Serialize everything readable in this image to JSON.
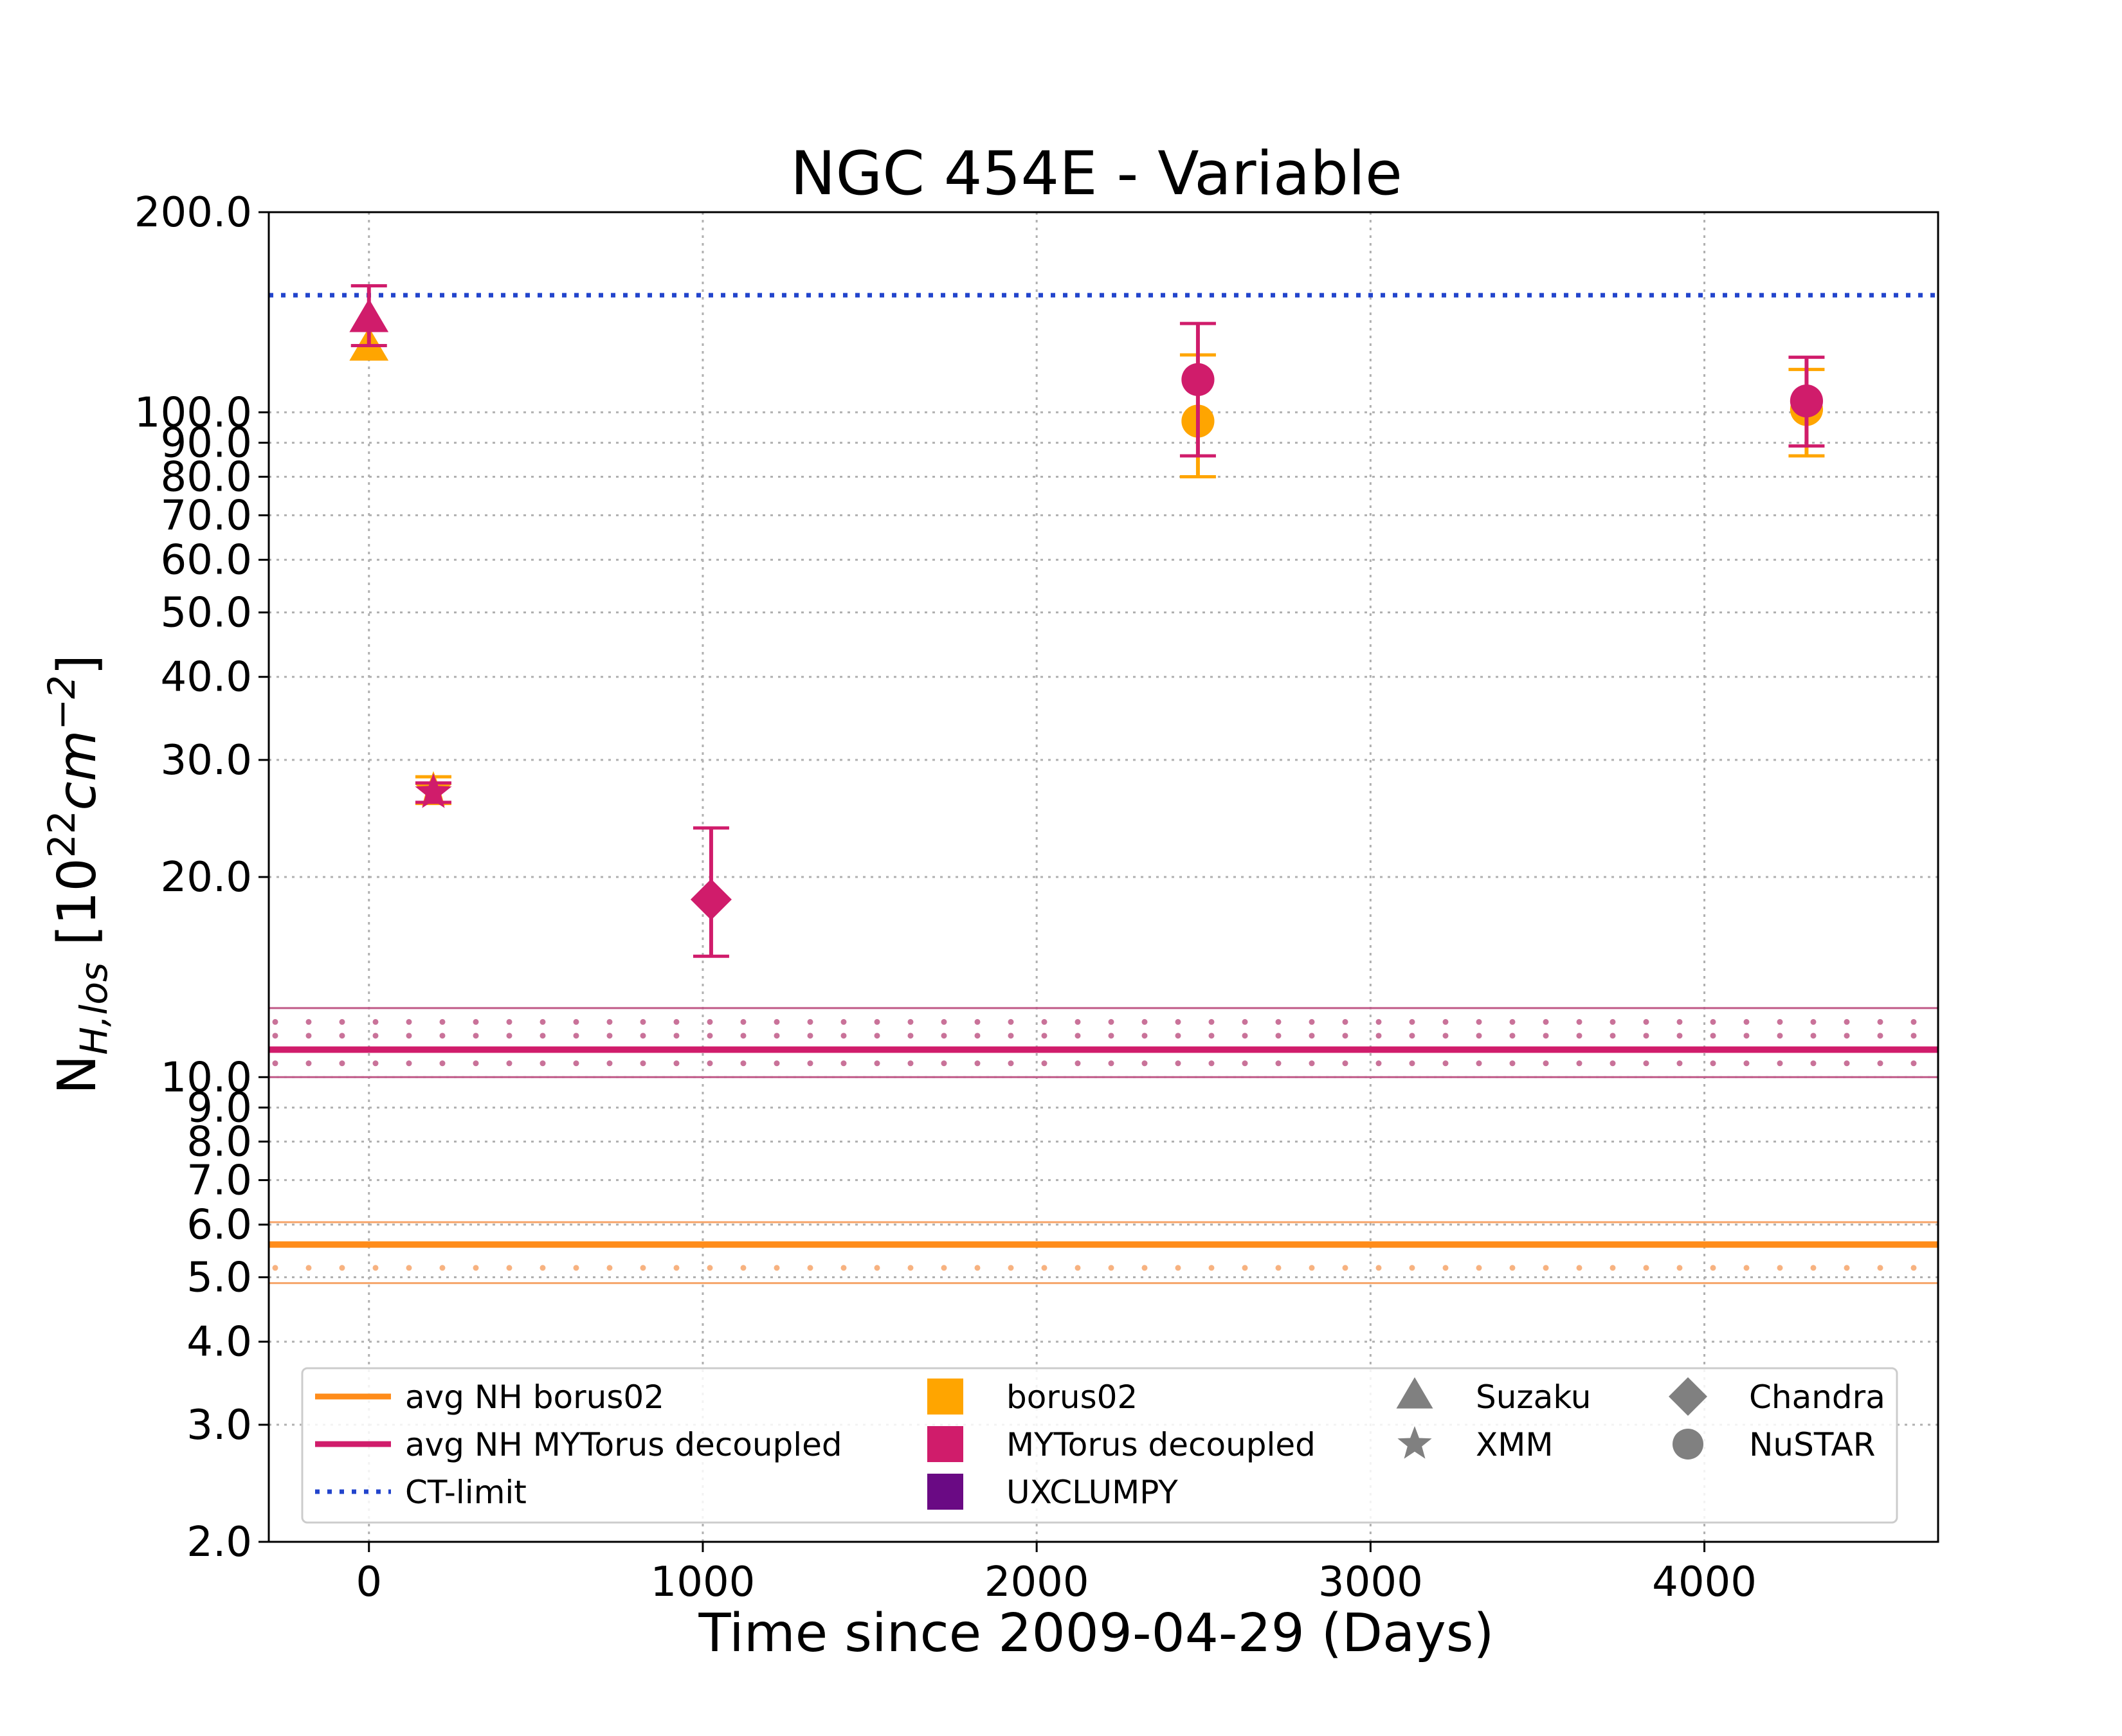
{
  "chart_data": {
    "type": "scatter",
    "title": "NGC 454E - Variable",
    "xlabel": "Time since 2009-04-29 (Days)",
    "ylabel": {
      "main": "N",
      "sub": "H,los",
      "unit_open": " [10",
      "unit_sup1": "22",
      "unit_mid": "cm",
      "unit_sup2": "−2",
      "unit_close": "]"
    },
    "x_axis": {
      "range": [
        -300,
        4700
      ],
      "ticks": [
        0,
        1000,
        2000,
        3000,
        4000
      ],
      "tick_labels": [
        "0",
        "1000",
        "2000",
        "3000",
        "4000"
      ]
    },
    "y_axis": {
      "scale": "log",
      "range": [
        2,
        200
      ],
      "ticks": [
        2,
        3,
        4,
        5,
        6,
        7,
        8,
        9,
        10,
        20,
        30,
        40,
        50,
        60,
        70,
        80,
        90,
        100,
        200
      ],
      "tick_labels": [
        "2.0",
        "3.0",
        "4.0",
        "5.0",
        "6.0",
        "7.0",
        "8.0",
        "9.0",
        "10.0",
        "20.0",
        "30.0",
        "40.0",
        "50.0",
        "60.0",
        "70.0",
        "80.0",
        "90.0",
        "100.0",
        "200.0"
      ]
    },
    "grid": true,
    "colors": {
      "borus02": "#FFA500",
      "mytorus": "#D01C6B",
      "uxclumpy": "#6A0A84",
      "avg_borus_line": "#FF8C1A",
      "avg_borus_band": "#F6A56A",
      "avg_mytorus_line": "#D01C6B",
      "avg_mytorus_band": "#C05A88",
      "ct_limit": "#2244CC",
      "marker_legend": "#808080"
    },
    "reference_lines": [
      {
        "name": "CT-limit",
        "y": 150,
        "style": "dotted"
      },
      {
        "name": "avg NH borus02",
        "y": 5.6,
        "band": [
          4.9,
          6.05
        ]
      },
      {
        "name": "avg NH MYTorus decoupled",
        "y": 11.0,
        "band": [
          10.0,
          12.7
        ]
      }
    ],
    "series": [
      {
        "name": "borus02",
        "points": [
          {
            "x": 0,
            "y": 125,
            "err": [
              125,
              125
            ],
            "telescope": "Suzaku"
          },
          {
            "x": 193,
            "y": 27,
            "err": [
              25.8,
              28.3
            ],
            "telescope": "XMM"
          },
          {
            "x": 2483,
            "y": 97,
            "err": [
              80,
              122
            ],
            "telescope": "NuSTAR"
          },
          {
            "x": 4306,
            "y": 101,
            "err": [
              86,
              116
            ],
            "telescope": "NuSTAR"
          }
        ]
      },
      {
        "name": "MYTorus decoupled",
        "points": [
          {
            "x": 0,
            "y": 138,
            "err": [
              126,
              155
            ],
            "telescope": "Suzaku"
          },
          {
            "x": 193,
            "y": 26.8,
            "err": [
              25.9,
              27.7
            ],
            "telescope": "XMM"
          },
          {
            "x": 1025,
            "y": 18.5,
            "err": [
              15.2,
              23.7
            ],
            "telescope": "Chandra"
          },
          {
            "x": 2483,
            "y": 112,
            "err": [
              86,
              136
            ],
            "telescope": "NuSTAR"
          },
          {
            "x": 4306,
            "y": 104,
            "err": [
              89,
              121
            ],
            "telescope": "NuSTAR"
          }
        ]
      }
    ],
    "legend": {
      "placement": "lower center",
      "entries": [
        {
          "label": "avg NH borus02",
          "kind": "line",
          "color_key": "avg_borus_line",
          "style": "solid"
        },
        {
          "label": "avg NH MYTorus decoupled",
          "kind": "line",
          "color_key": "avg_mytorus_line",
          "style": "solid"
        },
        {
          "label": "CT-limit",
          "kind": "line",
          "color_key": "ct_limit",
          "style": "dotted"
        },
        {
          "label": "borus02",
          "kind": "square",
          "color_key": "borus02"
        },
        {
          "label": "MYTorus decoupled",
          "kind": "square",
          "color_key": "mytorus"
        },
        {
          "label": "UXCLUMPY",
          "kind": "square",
          "color_key": "uxclumpy"
        },
        {
          "label": "Suzaku",
          "kind": "triangle",
          "color_key": "marker_legend"
        },
        {
          "label": "XMM",
          "kind": "star",
          "color_key": "marker_legend"
        },
        {
          "label": "Chandra",
          "kind": "diamond",
          "color_key": "marker_legend"
        },
        {
          "label": "NuSTAR",
          "kind": "circle",
          "color_key": "marker_legend"
        }
      ]
    }
  }
}
